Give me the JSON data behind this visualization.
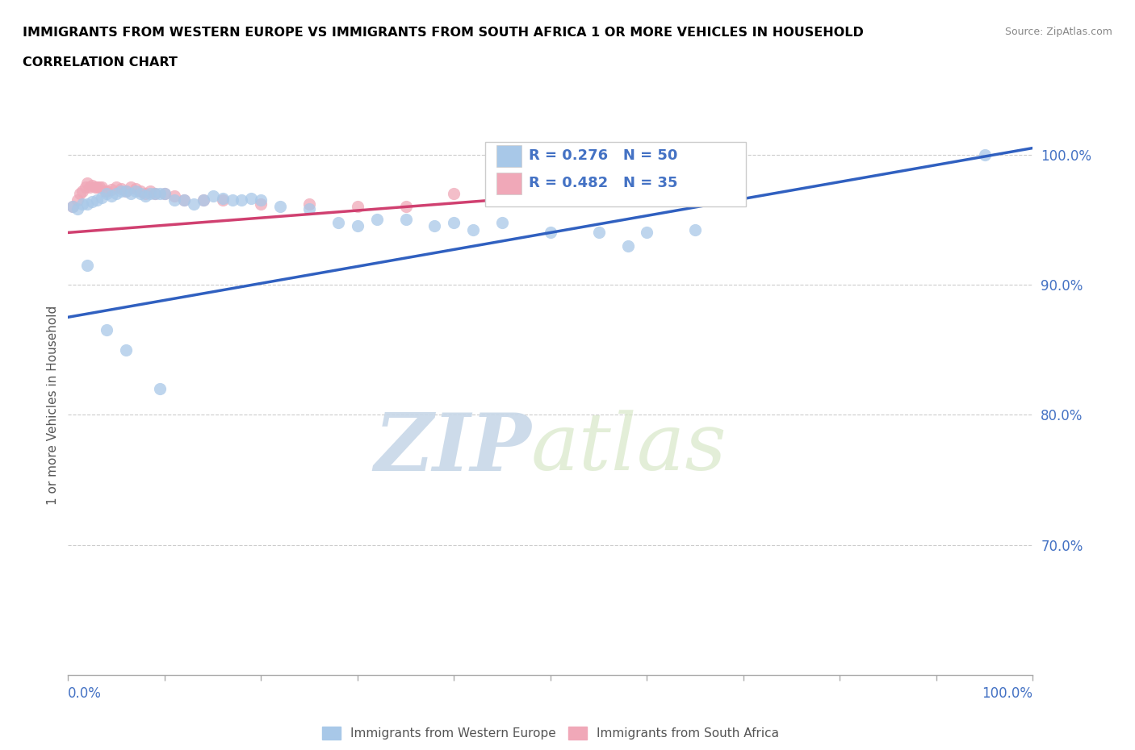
{
  "title_line1": "IMMIGRANTS FROM WESTERN EUROPE VS IMMIGRANTS FROM SOUTH AFRICA 1 OR MORE VEHICLES IN HOUSEHOLD",
  "title_line2": "CORRELATION CHART",
  "source_text": "Source: ZipAtlas.com",
  "ylabel": "1 or more Vehicles in Household",
  "ytick_labels": [
    "100.0%",
    "90.0%",
    "80.0%",
    "70.0%"
  ],
  "ytick_values": [
    1.0,
    0.9,
    0.8,
    0.7
  ],
  "xmin": 0.0,
  "xmax": 1.0,
  "ymin": 0.6,
  "ymax": 1.015,
  "legend_r_blue": "R = 0.276",
  "legend_n_blue": "N = 50",
  "legend_r_pink": "R = 0.482",
  "legend_n_pink": "N = 35",
  "blue_color": "#a8c8e8",
  "pink_color": "#f0a8b8",
  "blue_line_color": "#3060c0",
  "pink_line_color": "#d04070",
  "text_color": "#4472c4",
  "grid_color": "#cccccc",
  "blue_scatter_x": [
    0.005,
    0.01,
    0.015,
    0.02,
    0.025,
    0.03,
    0.035,
    0.04,
    0.045,
    0.05,
    0.055,
    0.06,
    0.065,
    0.07,
    0.075,
    0.08,
    0.085,
    0.09,
    0.095,
    0.1,
    0.11,
    0.12,
    0.13,
    0.14,
    0.15,
    0.16,
    0.17,
    0.18,
    0.19,
    0.2,
    0.22,
    0.25,
    0.28,
    0.3,
    0.32,
    0.35,
    0.38,
    0.4,
    0.42,
    0.45,
    0.5,
    0.55,
    0.58,
    0.6,
    0.65,
    0.02,
    0.04,
    0.06,
    0.095,
    0.95
  ],
  "blue_scatter_y": [
    0.96,
    0.958,
    0.962,
    0.962,
    0.964,
    0.965,
    0.967,
    0.97,
    0.968,
    0.97,
    0.972,
    0.972,
    0.97,
    0.972,
    0.97,
    0.968,
    0.97,
    0.97,
    0.97,
    0.97,
    0.965,
    0.965,
    0.962,
    0.965,
    0.968,
    0.966,
    0.965,
    0.965,
    0.966,
    0.965,
    0.96,
    0.958,
    0.948,
    0.945,
    0.95,
    0.95,
    0.945,
    0.948,
    0.942,
    0.948,
    0.94,
    0.94,
    0.93,
    0.94,
    0.942,
    0.915,
    0.865,
    0.85,
    0.82,
    1.0
  ],
  "pink_scatter_x": [
    0.005,
    0.01,
    0.012,
    0.015,
    0.018,
    0.02,
    0.022,
    0.025,
    0.028,
    0.03,
    0.032,
    0.035,
    0.038,
    0.04,
    0.045,
    0.05,
    0.055,
    0.06,
    0.065,
    0.07,
    0.075,
    0.08,
    0.085,
    0.09,
    0.1,
    0.11,
    0.12,
    0.14,
    0.16,
    0.2,
    0.25,
    0.3,
    0.35,
    0.4,
    0.6
  ],
  "pink_scatter_y": [
    0.96,
    0.965,
    0.97,
    0.972,
    0.975,
    0.978,
    0.975,
    0.976,
    0.975,
    0.975,
    0.975,
    0.975,
    0.972,
    0.972,
    0.973,
    0.975,
    0.974,
    0.972,
    0.975,
    0.974,
    0.972,
    0.97,
    0.972,
    0.97,
    0.97,
    0.968,
    0.965,
    0.965,
    0.965,
    0.962,
    0.962,
    0.96,
    0.96,
    0.97,
    0.97
  ],
  "blue_line_x": [
    0.0,
    1.0
  ],
  "blue_line_y_start": 0.875,
  "blue_line_y_end": 1.005,
  "pink_line_x": [
    0.0,
    0.6
  ],
  "pink_line_y_start": 0.94,
  "pink_line_y_end": 0.974,
  "watermark_zip": "ZIP",
  "watermark_atlas": "atlas",
  "dot_size_blue": 120,
  "dot_size_pink": 120
}
